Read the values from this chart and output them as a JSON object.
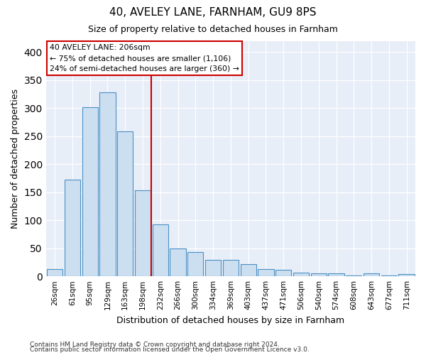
{
  "title1": "40, AVELEY LANE, FARNHAM, GU9 8PS",
  "title2": "Size of property relative to detached houses in Farnham",
  "xlabel": "Distribution of detached houses by size in Farnham",
  "ylabel": "Number of detached properties",
  "categories": [
    "26sqm",
    "61sqm",
    "95sqm",
    "129sqm",
    "163sqm",
    "198sqm",
    "232sqm",
    "266sqm",
    "300sqm",
    "334sqm",
    "369sqm",
    "403sqm",
    "437sqm",
    "471sqm",
    "506sqm",
    "540sqm",
    "574sqm",
    "608sqm",
    "643sqm",
    "677sqm",
    "711sqm"
  ],
  "values": [
    13,
    172,
    301,
    328,
    259,
    153,
    93,
    50,
    43,
    29,
    29,
    22,
    13,
    11,
    7,
    5,
    5,
    2,
    5,
    2,
    4
  ],
  "bar_color": "#ccdff0",
  "bar_edge_color": "#4a90c4",
  "red_line_x": 5.5,
  "annotation_line1": "40 AVELEY LANE: 206sqm",
  "annotation_line2": "← 75% of detached houses are smaller (1,106)",
  "annotation_line3": "24% of semi-detached houses are larger (360) →",
  "footer1": "Contains HM Land Registry data © Crown copyright and database right 2024.",
  "footer2": "Contains public sector information licensed under the Open Government Licence v3.0.",
  "ylim": [
    0,
    420
  ],
  "yticks": [
    0,
    50,
    100,
    150,
    200,
    250,
    300,
    350,
    400
  ],
  "plot_bg_color": "#e8eef8",
  "grid_color": "#ffffff"
}
